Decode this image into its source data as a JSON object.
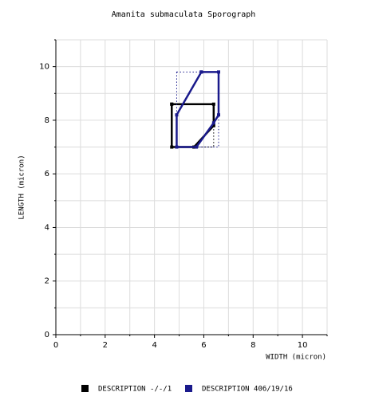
{
  "chart_data": {
    "type": "polygon",
    "title": "Amanita submaculata Sporograph",
    "x_label": "WIDTH (micron)",
    "y_label": "LENGTH (micron)",
    "xlim": [
      0,
      11
    ],
    "ylim": [
      0,
      11
    ],
    "xticks": [
      0,
      2,
      4,
      6,
      8,
      10
    ],
    "yticks": [
      0,
      2,
      4,
      6,
      8,
      10
    ],
    "minor_xticks": [
      1,
      3,
      5,
      7,
      9,
      11
    ],
    "minor_yticks": [
      1,
      3,
      5,
      7,
      9,
      11
    ],
    "grid": true,
    "series": [
      {
        "name": "DESCRIPTION -/-/1",
        "color": "#000000",
        "x": [
          4.7,
          6.4,
          6.4,
          5.6,
          4.7,
          4.7
        ],
        "y": [
          8.6,
          8.6,
          7.8,
          7.0,
          7.0,
          8.6
        ]
      },
      {
        "name": "DESCRIPTION 406/19/16",
        "color": "#1a1a8c",
        "x": [
          5.9,
          6.6,
          6.6,
          6.4,
          5.7,
          4.9,
          4.9,
          5.9
        ],
        "y": [
          9.8,
          9.8,
          8.2,
          7.9,
          7.0,
          7.0,
          8.2,
          9.8
        ]
      }
    ]
  }
}
